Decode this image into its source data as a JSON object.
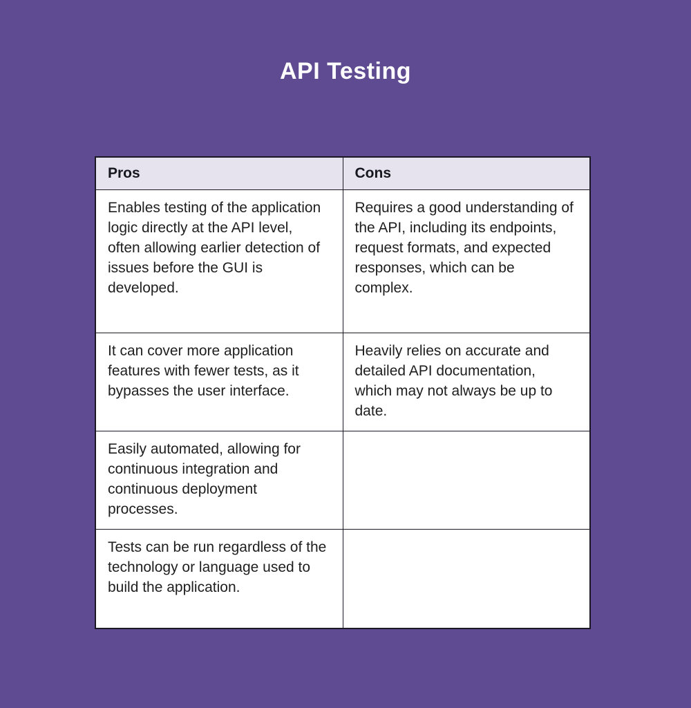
{
  "page": {
    "title": "API Testing",
    "background_color": "#5e4b92",
    "title_color": "#fdfdfe"
  },
  "table": {
    "header_bg": "#e6e3ee",
    "cell_bg": "#ffffff",
    "border_color": "#1b1725",
    "headers": {
      "pros": "Pros",
      "cons": "Cons"
    },
    "rows": [
      {
        "pros": "Enables testing of the application logic directly at the API level, often allowing earlier detection of issues before the GUI is developed.",
        "cons": "Requires a good understanding of the API, including its endpoints, request formats, and expected responses, which can be complex."
      },
      {
        "pros": "It can cover more application features with fewer tests, as it bypasses the user interface.",
        "cons": "Heavily relies on accurate and detailed API documentation, which may not always be up to date."
      },
      {
        "pros": "Easily automated, allowing for continuous integration and continuous deployment processes.",
        "cons": ""
      },
      {
        "pros": "Tests can be run regardless of the technology or language used to build the application.",
        "cons": ""
      }
    ]
  }
}
